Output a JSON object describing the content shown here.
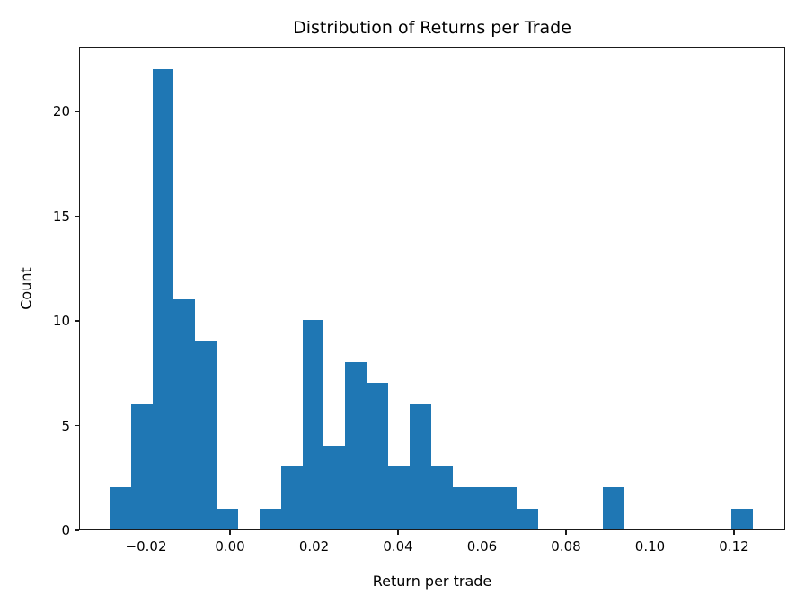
{
  "chart_data": {
    "type": "histogram",
    "title": "Distribution of Returns per Trade",
    "xlabel": "Return per trade",
    "ylabel": "Count",
    "bar_color": "#1f77b4",
    "grid": false,
    "legend": null,
    "bin_start": -0.0287,
    "bin_width": 0.005103,
    "counts": [
      2,
      6,
      22,
      11,
      9,
      1,
      0,
      1,
      3,
      10,
      4,
      8,
      7,
      3,
      6,
      3,
      2,
      2,
      2,
      1,
      0,
      0,
      0,
      2,
      0,
      0,
      0,
      0,
      0,
      1
    ],
    "total_trades": 106,
    "xlim": [
      -0.03594,
      0.13219
    ],
    "ylim": [
      0,
      23.1
    ],
    "xticks": {
      "values": [
        -0.02,
        0.0,
        0.02,
        0.04,
        0.06,
        0.08,
        0.1,
        0.12
      ],
      "labels": [
        "−0.02",
        "0.00",
        "0.02",
        "0.04",
        "0.06",
        "0.08",
        "0.10",
        "0.12"
      ]
    },
    "yticks": {
      "values": [
        0,
        5,
        10,
        15,
        20
      ],
      "labels": [
        "0",
        "5",
        "10",
        "15",
        "20"
      ]
    }
  }
}
